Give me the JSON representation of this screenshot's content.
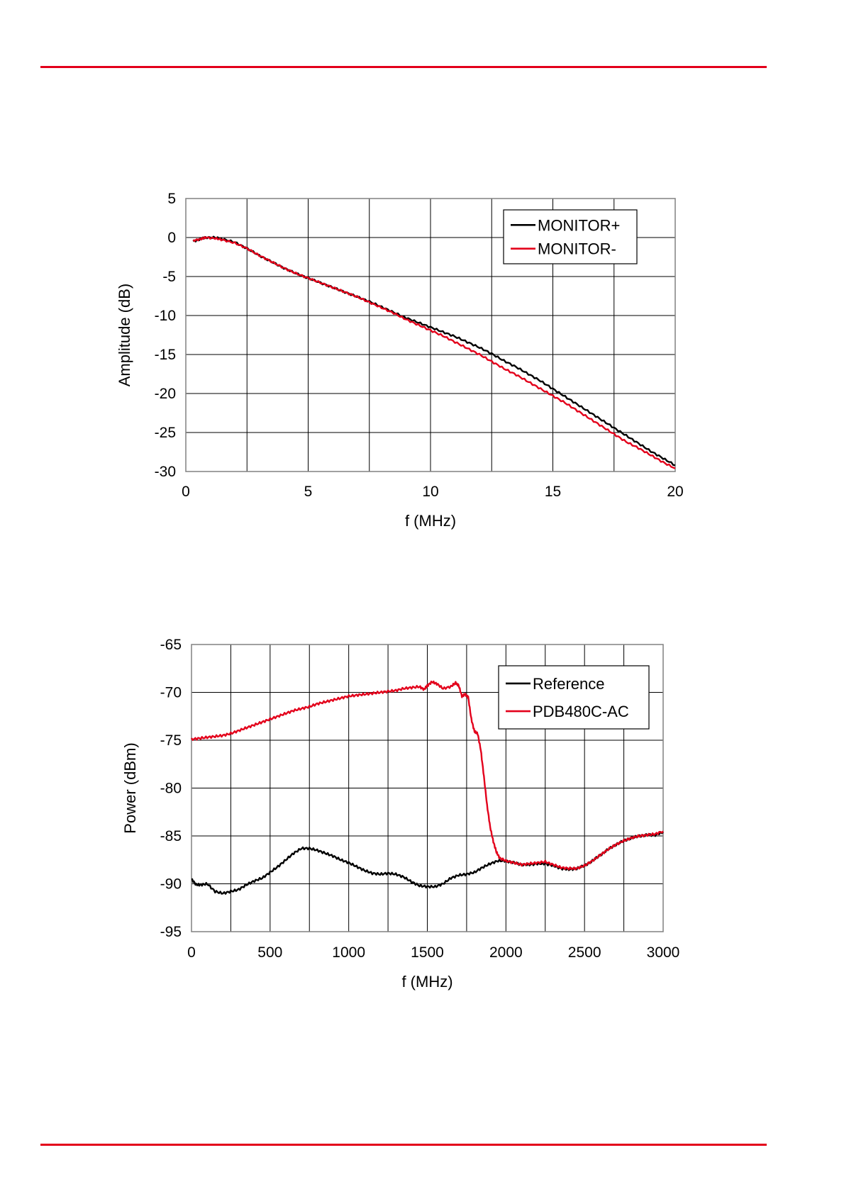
{
  "page": {
    "rule_color": "#e3001b"
  },
  "chart_data": [
    {
      "type": "line",
      "title": "",
      "xlabel": "f (MHz)",
      "ylabel": "Amplitude (dB)",
      "xlim": [
        0,
        20
      ],
      "ylim": [
        -30,
        5
      ],
      "xticks": [
        0,
        5,
        10,
        15,
        20
      ],
      "yticks": [
        5,
        0,
        -5,
        -10,
        -15,
        -20,
        -25,
        -30
      ],
      "x_grid_step": 2.5,
      "grid": true,
      "legend_position": "top-right",
      "series": [
        {
          "name": "MONITOR+",
          "color": "#000000",
          "points": [
            [
              0.3,
              -0.5
            ],
            [
              0.6,
              -0.2
            ],
            [
              0.8,
              0.0
            ],
            [
              1.2,
              0.0
            ],
            [
              1.5,
              -0.2
            ],
            [
              2,
              -0.6
            ],
            [
              2.5,
              -1.4
            ],
            [
              3,
              -2.3
            ],
            [
              3.5,
              -3.1
            ],
            [
              4,
              -3.9
            ],
            [
              4.5,
              -4.6
            ],
            [
              5,
              -5.2
            ],
            [
              5.5,
              -5.8
            ],
            [
              6,
              -6.4
            ],
            [
              6.5,
              -7.0
            ],
            [
              7,
              -7.6
            ],
            [
              7.5,
              -8.2
            ],
            [
              8,
              -8.9
            ],
            [
              8.5,
              -9.6
            ],
            [
              9,
              -10.3
            ],
            [
              9.5,
              -10.9
            ],
            [
              10,
              -11.5
            ],
            [
              10.5,
              -12.1
            ],
            [
              11,
              -12.7
            ],
            [
              11.5,
              -13.4
            ],
            [
              12,
              -14.1
            ],
            [
              12.5,
              -14.9
            ],
            [
              13,
              -15.8
            ],
            [
              13.5,
              -16.6
            ],
            [
              14,
              -17.5
            ],
            [
              14.5,
              -18.4
            ],
            [
              15,
              -19.4
            ],
            [
              15.5,
              -20.4
            ],
            [
              16,
              -21.4
            ],
            [
              16.5,
              -22.4
            ],
            [
              17,
              -23.4
            ],
            [
              17.5,
              -24.4
            ],
            [
              18,
              -25.4
            ],
            [
              18.5,
              -26.4
            ],
            [
              19,
              -27.4
            ],
            [
              19.5,
              -28.3
            ],
            [
              20,
              -29.2
            ]
          ]
        },
        {
          "name": "MONITOR-",
          "color": "#e3001b",
          "points": [
            [
              0.3,
              -0.4
            ],
            [
              0.6,
              -0.2
            ],
            [
              0.8,
              0.0
            ],
            [
              1.2,
              -0.1
            ],
            [
              1.5,
              -0.3
            ],
            [
              2,
              -0.7
            ],
            [
              2.5,
              -1.4
            ],
            [
              3,
              -2.3
            ],
            [
              3.5,
              -3.1
            ],
            [
              4,
              -3.9
            ],
            [
              4.5,
              -4.6
            ],
            [
              5,
              -5.2
            ],
            [
              5.5,
              -5.8
            ],
            [
              6,
              -6.4
            ],
            [
              6.5,
              -7.0
            ],
            [
              7,
              -7.6
            ],
            [
              7.5,
              -8.3
            ],
            [
              8,
              -9.0
            ],
            [
              8.5,
              -9.7
            ],
            [
              9,
              -10.5
            ],
            [
              9.5,
              -11.2
            ],
            [
              10,
              -11.9
            ],
            [
              10.5,
              -12.6
            ],
            [
              11,
              -13.4
            ],
            [
              11.5,
              -14.2
            ],
            [
              12,
              -15.0
            ],
            [
              12.5,
              -15.9
            ],
            [
              13,
              -16.8
            ],
            [
              13.5,
              -17.6
            ],
            [
              14,
              -18.5
            ],
            [
              14.5,
              -19.4
            ],
            [
              15,
              -20.3
            ],
            [
              15.5,
              -21.2
            ],
            [
              16,
              -22.2
            ],
            [
              16.5,
              -23.2
            ],
            [
              17,
              -24.2
            ],
            [
              17.5,
              -25.2
            ],
            [
              18,
              -26.2
            ],
            [
              18.5,
              -27.0
            ],
            [
              19,
              -27.9
            ],
            [
              19.5,
              -28.8
            ],
            [
              20,
              -29.6
            ]
          ]
        }
      ]
    },
    {
      "type": "line",
      "title": "",
      "xlabel": "f (MHz)",
      "ylabel": "Power (dBm)",
      "xlim": [
        0,
        3000
      ],
      "ylim": [
        -95,
        -65
      ],
      "xticks": [
        0,
        500,
        1000,
        1500,
        2000,
        2500,
        3000
      ],
      "yticks": [
        -65,
        -70,
        -75,
        -80,
        -85,
        -90,
        -95
      ],
      "x_grid_step": 250,
      "grid": true,
      "legend_position": "top-right",
      "series": [
        {
          "name": "Reference",
          "color": "#000000",
          "points": [
            [
              0,
              -89.5
            ],
            [
              30,
              -90.1
            ],
            [
              60,
              -90.1
            ],
            [
              100,
              -90.0
            ],
            [
              150,
              -90.8
            ],
            [
              200,
              -91.0
            ],
            [
              250,
              -90.8
            ],
            [
              300,
              -90.6
            ],
            [
              350,
              -90.1
            ],
            [
              400,
              -89.7
            ],
            [
              450,
              -89.4
            ],
            [
              500,
              -88.8
            ],
            [
              550,
              -88.2
            ],
            [
              600,
              -87.5
            ],
            [
              650,
              -86.8
            ],
            [
              700,
              -86.3
            ],
            [
              750,
              -86.3
            ],
            [
              800,
              -86.5
            ],
            [
              850,
              -86.8
            ],
            [
              900,
              -87.1
            ],
            [
              950,
              -87.5
            ],
            [
              1000,
              -87.8
            ],
            [
              1050,
              -88.2
            ],
            [
              1100,
              -88.6
            ],
            [
              1150,
              -88.9
            ],
            [
              1200,
              -89.0
            ],
            [
              1250,
              -88.9
            ],
            [
              1300,
              -89.0
            ],
            [
              1350,
              -89.3
            ],
            [
              1400,
              -89.8
            ],
            [
              1450,
              -90.2
            ],
            [
              1500,
              -90.3
            ],
            [
              1550,
              -90.3
            ],
            [
              1600,
              -90.0
            ],
            [
              1650,
              -89.4
            ],
            [
              1700,
              -89.1
            ],
            [
              1750,
              -89.0
            ],
            [
              1800,
              -88.8
            ],
            [
              1850,
              -88.3
            ],
            [
              1900,
              -87.9
            ],
            [
              1950,
              -87.6
            ],
            [
              2000,
              -87.6
            ],
            [
              2050,
              -87.8
            ],
            [
              2100,
              -88.0
            ],
            [
              2150,
              -88.0
            ],
            [
              2200,
              -87.9
            ],
            [
              2250,
              -87.9
            ],
            [
              2300,
              -88.1
            ],
            [
              2350,
              -88.4
            ],
            [
              2400,
              -88.5
            ],
            [
              2450,
              -88.4
            ],
            [
              2500,
              -88.1
            ],
            [
              2550,
              -87.6
            ],
            [
              2600,
              -87.0
            ],
            [
              2650,
              -86.4
            ],
            [
              2700,
              -85.9
            ],
            [
              2750,
              -85.5
            ],
            [
              2800,
              -85.2
            ],
            [
              2850,
              -85.0
            ],
            [
              2900,
              -84.9
            ],
            [
              2950,
              -84.9
            ],
            [
              3000,
              -84.6
            ]
          ]
        },
        {
          "name": "PDB480C-AC",
          "color": "#e3001b",
          "points": [
            [
              0,
              -74.9
            ],
            [
              50,
              -74.8
            ],
            [
              100,
              -74.7
            ],
            [
              150,
              -74.6
            ],
            [
              200,
              -74.5
            ],
            [
              250,
              -74.3
            ],
            [
              300,
              -74.0
            ],
            [
              350,
              -73.7
            ],
            [
              400,
              -73.4
            ],
            [
              450,
              -73.1
            ],
            [
              500,
              -72.8
            ],
            [
              550,
              -72.5
            ],
            [
              600,
              -72.2
            ],
            [
              650,
              -71.9
            ],
            [
              700,
              -71.7
            ],
            [
              750,
              -71.5
            ],
            [
              800,
              -71.2
            ],
            [
              850,
              -71.0
            ],
            [
              900,
              -70.8
            ],
            [
              950,
              -70.6
            ],
            [
              1000,
              -70.4
            ],
            [
              1050,
              -70.3
            ],
            [
              1100,
              -70.2
            ],
            [
              1150,
              -70.1
            ],
            [
              1200,
              -70.0
            ],
            [
              1250,
              -69.9
            ],
            [
              1300,
              -69.8
            ],
            [
              1350,
              -69.6
            ],
            [
              1400,
              -69.5
            ],
            [
              1450,
              -69.4
            ],
            [
              1480,
              -69.7
            ],
            [
              1500,
              -69.3
            ],
            [
              1530,
              -68.9
            ],
            [
              1560,
              -69.1
            ],
            [
              1600,
              -69.6
            ],
            [
              1650,
              -69.4
            ],
            [
              1680,
              -69.0
            ],
            [
              1700,
              -69.3
            ],
            [
              1720,
              -70.4
            ],
            [
              1740,
              -70.2
            ],
            [
              1760,
              -70.5
            ],
            [
              1780,
              -72.8
            ],
            [
              1800,
              -74.1
            ],
            [
              1820,
              -74.3
            ],
            [
              1840,
              -76.0
            ],
            [
              1860,
              -78.8
            ],
            [
              1880,
              -81.8
            ],
            [
              1900,
              -84.1
            ],
            [
              1920,
              -85.6
            ],
            [
              1940,
              -86.7
            ],
            [
              1960,
              -87.3
            ],
            [
              2000,
              -87.6
            ],
            [
              2050,
              -87.8
            ],
            [
              2100,
              -88.0
            ],
            [
              2150,
              -87.9
            ],
            [
              2200,
              -87.8
            ],
            [
              2250,
              -87.7
            ],
            [
              2300,
              -88.0
            ],
            [
              2350,
              -88.3
            ],
            [
              2400,
              -88.4
            ],
            [
              2450,
              -88.4
            ],
            [
              2500,
              -88.1
            ],
            [
              2550,
              -87.6
            ],
            [
              2600,
              -87.0
            ],
            [
              2650,
              -86.4
            ],
            [
              2700,
              -85.9
            ],
            [
              2750,
              -85.5
            ],
            [
              2800,
              -85.2
            ],
            [
              2850,
              -85.0
            ],
            [
              2900,
              -84.9
            ],
            [
              2950,
              -84.8
            ],
            [
              3000,
              -84.5
            ]
          ]
        }
      ]
    }
  ]
}
